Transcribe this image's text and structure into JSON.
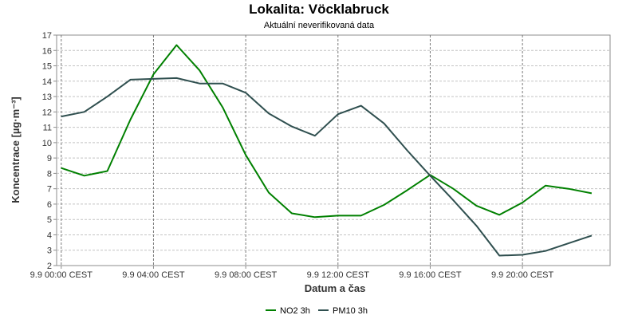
{
  "chart_data": {
    "type": "line",
    "title": "Lokalita: Vöcklabruck",
    "subtitle": "Aktuální neverifikovaná data",
    "xlabel": "Datum a čas",
    "ylabel": "Koncentrace [µg·m⁻³]",
    "ylim": [
      2,
      17
    ],
    "yticks": [
      2,
      3,
      4,
      5,
      6,
      7,
      8,
      9,
      10,
      11,
      12,
      13,
      14,
      15,
      16,
      17
    ],
    "xlim": [
      -0.2,
      23.8
    ],
    "xticks": [
      {
        "x": 0,
        "label": "9.9 00:00 CEST"
      },
      {
        "x": 4,
        "label": "9.9 04:00 CEST"
      },
      {
        "x": 8,
        "label": "9.9 08:00 CEST"
      },
      {
        "x": 12,
        "label": "9.9 12:00 CEST"
      },
      {
        "x": 16,
        "label": "9.9 16:00 CEST"
      },
      {
        "x": 20,
        "label": "9.9 20:00 CEST"
      }
    ],
    "grid": true,
    "legend_position": "bottom-center",
    "x": [
      0,
      1,
      2,
      3,
      4,
      5,
      6,
      7,
      8,
      9,
      10,
      11,
      12,
      13,
      14,
      15,
      16,
      17,
      18,
      19,
      20,
      21,
      22,
      23
    ],
    "series": [
      {
        "name": "NO2 3h",
        "color": "#008000",
        "values": [
          8.35,
          7.85,
          8.15,
          11.5,
          14.45,
          16.35,
          14.7,
          12.3,
          9.2,
          6.75,
          5.4,
          5.15,
          5.25,
          5.25,
          5.95,
          6.9,
          7.9,
          7.0,
          5.9,
          5.3,
          6.1,
          7.2,
          7.0,
          6.7
        ]
      },
      {
        "name": "PM10 3h",
        "color": "#2f4f4f",
        "values": [
          11.7,
          12.0,
          13.0,
          14.1,
          14.15,
          14.2,
          13.85,
          13.85,
          13.25,
          11.9,
          11.05,
          10.45,
          11.85,
          12.4,
          11.25,
          9.5,
          7.85,
          6.25,
          4.6,
          2.65,
          2.7,
          2.95,
          3.45,
          3.95
        ]
      }
    ]
  }
}
